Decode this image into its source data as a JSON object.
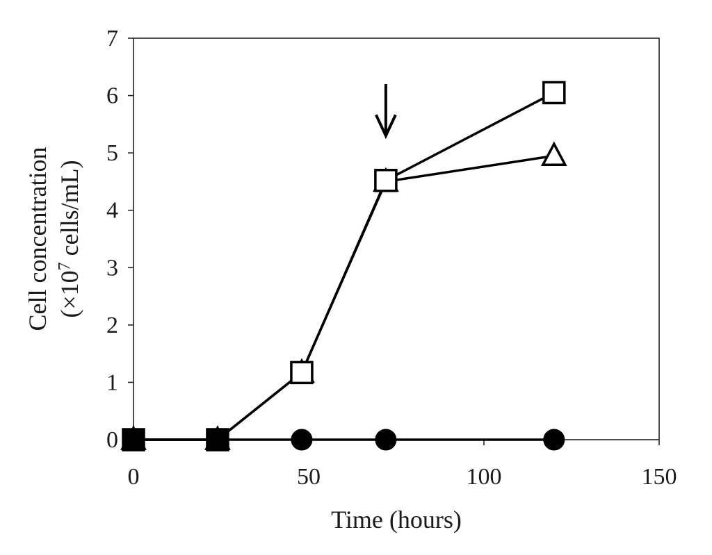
{
  "chart_data": {
    "type": "line",
    "title": "",
    "xlabel": "Time (hours)",
    "ylabel_line1": "Cell concentration",
    "ylabel_line2_prefix": "(×10",
    "ylabel_line2_exp": "7",
    "ylabel_line2_suffix": " cells/mL)",
    "xlim": [
      0,
      150
    ],
    "ylim": [
      0,
      7
    ],
    "xticks": [
      0,
      50,
      100,
      150
    ],
    "yticks": [
      0,
      1,
      2,
      3,
      4,
      5,
      6,
      7
    ],
    "xtick_labels": [
      "0",
      "50",
      "100",
      "150"
    ],
    "ytick_labels": [
      "0",
      "1",
      "2",
      "3",
      "4",
      "5",
      "6",
      "7"
    ],
    "grid": false,
    "legend": "none",
    "series": [
      {
        "marker": "filled-circle",
        "x": [
          0,
          24,
          48,
          72,
          120
        ],
        "y": [
          0,
          0,
          0,
          0,
          0
        ]
      },
      {
        "marker": "open-triangle",
        "x": [
          0,
          24,
          48,
          72,
          120
        ],
        "y": [
          0,
          0,
          1.17,
          4.5,
          4.95
        ]
      },
      {
        "marker": "open-square",
        "x": [
          0,
          24,
          48,
          72,
          120
        ],
        "y": [
          0,
          0,
          1.17,
          4.52,
          6.05
        ]
      },
      {
        "marker": "filled-square",
        "x": [
          0,
          24
        ],
        "y": [
          0,
          0
        ]
      }
    ],
    "annotations": [
      {
        "type": "arrow-down",
        "x": 72,
        "y_top": 6.2,
        "y_bottom": 5.3
      }
    ]
  }
}
